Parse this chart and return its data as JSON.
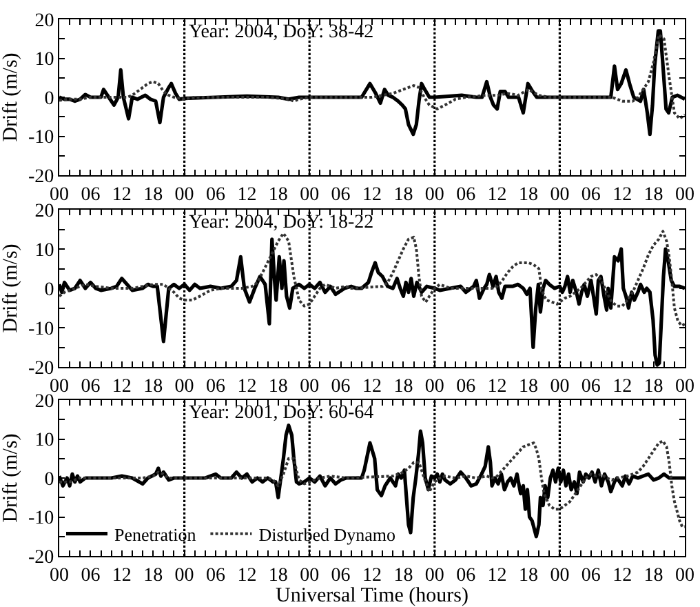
{
  "chart_data": [
    {
      "type": "line",
      "ylabel": "Drift (m/s)",
      "annotations": [
        "Year: 2004, DoY: 38-42"
      ],
      "xlim": [
        0,
        120
      ],
      "xticks": [
        {
          "value": 0,
          "label": "00"
        },
        {
          "value": 2,
          "label": null
        },
        {
          "value": 4,
          "label": null
        },
        {
          "value": 6,
          "label": "06"
        },
        {
          "value": 8,
          "label": null
        },
        {
          "value": 10,
          "label": null
        },
        {
          "value": 12,
          "label": "12"
        },
        {
          "value": 14,
          "label": null
        },
        {
          "value": 16,
          "label": null
        },
        {
          "value": 18,
          "label": "18"
        },
        {
          "value": 20,
          "label": null
        },
        {
          "value": 22,
          "label": null
        },
        {
          "value": 24,
          "label": "00"
        },
        {
          "value": 26,
          "label": null
        },
        {
          "value": 28,
          "label": null
        },
        {
          "value": 30,
          "label": "06"
        },
        {
          "value": 32,
          "label": null
        },
        {
          "value": 34,
          "label": null
        },
        {
          "value": 36,
          "label": "12"
        },
        {
          "value": 38,
          "label": null
        },
        {
          "value": 40,
          "label": null
        },
        {
          "value": 42,
          "label": "18"
        },
        {
          "value": 44,
          "label": null
        },
        {
          "value": 46,
          "label": null
        },
        {
          "value": 48,
          "label": "00"
        },
        {
          "value": 50,
          "label": null
        },
        {
          "value": 52,
          "label": null
        },
        {
          "value": 54,
          "label": "06"
        },
        {
          "value": 56,
          "label": null
        },
        {
          "value": 58,
          "label": null
        },
        {
          "value": 60,
          "label": "12"
        },
        {
          "value": 62,
          "label": null
        },
        {
          "value": 64,
          "label": null
        },
        {
          "value": 66,
          "label": "18"
        },
        {
          "value": 68,
          "label": null
        },
        {
          "value": 70,
          "label": null
        },
        {
          "value": 72,
          "label": "00"
        },
        {
          "value": 74,
          "label": null
        },
        {
          "value": 76,
          "label": null
        },
        {
          "value": 78,
          "label": "06"
        },
        {
          "value": 80,
          "label": null
        },
        {
          "value": 82,
          "label": null
        },
        {
          "value": 84,
          "label": "12"
        },
        {
          "value": 86,
          "label": null
        },
        {
          "value": 88,
          "label": null
        },
        {
          "value": 90,
          "label": "18"
        },
        {
          "value": 92,
          "label": null
        },
        {
          "value": 94,
          "label": null
        },
        {
          "value": 96,
          "label": "00"
        },
        {
          "value": 98,
          "label": null
        },
        {
          "value": 100,
          "label": null
        },
        {
          "value": 102,
          "label": "06"
        },
        {
          "value": 104,
          "label": null
        },
        {
          "value": 106,
          "label": null
        },
        {
          "value": 108,
          "label": "12"
        },
        {
          "value": 110,
          "label": null
        },
        {
          "value": 112,
          "label": null
        },
        {
          "value": 114,
          "label": "18"
        },
        {
          "value": 116,
          "label": null
        },
        {
          "value": 118,
          "label": null
        },
        {
          "value": 120,
          "label": "00"
        }
      ],
      "ylim": [
        -20,
        20
      ],
      "yticks": [
        -20,
        {
          "value": -15,
          "label": null
        },
        -10,
        {
          "value": -5,
          "label": null
        },
        0,
        {
          "value": 5,
          "label": null
        },
        10,
        {
          "value": 15,
          "label": null
        },
        20
      ],
      "ref_lines": [
        {
          "axis": "x",
          "value": 24,
          "color": "#000000",
          "line_style": "dotted"
        },
        {
          "axis": "x",
          "value": 48,
          "color": "#000000",
          "line_style": "dotted"
        },
        {
          "axis": "x",
          "value": 72,
          "color": "#000000",
          "line_style": "dotted"
        },
        {
          "axis": "x",
          "value": 96,
          "color": "#000000",
          "line_style": "dotted"
        }
      ],
      "series": [
        {
          "color": "#000000",
          "line_style": "solid",
          "x": [
            0,
            1,
            2,
            3,
            4,
            5,
            6,
            8,
            8.5,
            9.5,
            10.5,
            11.3,
            11.8,
            12.3,
            13.3,
            14,
            15,
            16.5,
            17.5,
            18.5,
            19.3,
            20,
            21,
            21.5,
            22.3,
            23,
            24,
            30,
            36,
            42,
            44,
            46,
            48,
            54,
            58,
            59.6,
            60.7,
            61.6,
            62.4,
            63.1,
            64,
            65,
            65.8,
            66.4,
            67,
            67.9,
            68.5,
            69,
            69.5,
            70.1,
            71,
            72,
            77.2,
            80,
            81.1,
            82,
            82.7,
            83.3,
            84,
            84.6,
            85.5,
            86.2,
            88.1,
            89,
            89.9,
            90.8,
            91.6,
            96,
            105.8,
            106.5,
            107.1,
            107.8,
            108.7,
            109.5,
            110.2,
            111.5,
            112.1,
            112.8,
            113.3,
            113.8,
            114.2,
            114.9,
            115.3,
            115.7,
            116.4,
            116.9,
            117.6,
            118.6,
            120
          ],
          "values": [
            0,
            -0.5,
            -0.5,
            -1,
            -0.5,
            0.7,
            0,
            0,
            2,
            0,
            -2,
            0,
            7,
            0,
            -5.5,
            0,
            -0.5,
            0.5,
            -0.5,
            -1,
            -6.5,
            0,
            2.5,
            3.5,
            1,
            -0.5,
            -0.3,
            0,
            0.3,
            0,
            -0.5,
            0,
            0,
            0,
            0,
            3.5,
            1,
            -1.5,
            2,
            0.5,
            0,
            -1,
            -2,
            -3,
            -7,
            -9.5,
            -7,
            -1,
            3.5,
            2,
            0,
            0,
            0.5,
            0,
            0,
            4,
            0,
            -2,
            -3,
            1.5,
            1.5,
            0,
            0,
            -4,
            3.5,
            1.5,
            0,
            0,
            0,
            8,
            2,
            3.5,
            7,
            3,
            0,
            -1,
            2,
            -4,
            -9.5,
            -2,
            8,
            17,
            17,
            10,
            -3,
            -4,
            0,
            0.5,
            -0.5
          ]
        },
        {
          "color": "#333333",
          "line_style": "dotted",
          "x": [
            0,
            2,
            4,
            6,
            10,
            13,
            14,
            15,
            16,
            17,
            18,
            19,
            20,
            21,
            22,
            24,
            26,
            40,
            44,
            45,
            46,
            48,
            60,
            62,
            64,
            66,
            68,
            69,
            70,
            71,
            72.5,
            74,
            76,
            78,
            82,
            84,
            86,
            88,
            90,
            92,
            94,
            96,
            106,
            108,
            110,
            111,
            112,
            113,
            114,
            115,
            116,
            117,
            118,
            119,
            120
          ],
          "values": [
            -0.8,
            -0.5,
            -0.5,
            0,
            0,
            0,
            0.5,
            1.5,
            2.5,
            3.5,
            4,
            3.5,
            1.5,
            0.5,
            0,
            -0.5,
            0,
            0,
            -0.5,
            -1,
            -0.5,
            0,
            0,
            0.5,
            1,
            2,
            3,
            2.5,
            0,
            -2,
            -3,
            -2,
            -0.5,
            0,
            0.5,
            0.5,
            1,
            0.5,
            2,
            0.5,
            0,
            0,
            0,
            -1,
            -1,
            0,
            2,
            4,
            9,
            16,
            15,
            5,
            -4,
            -5.5,
            -4.5
          ]
        }
      ]
    },
    {
      "type": "line",
      "ylabel": "Drift (m/s)",
      "annotations": [
        "Year: 2004, DoY: 18-22"
      ],
      "xlim": [
        0,
        120
      ],
      "xticks": [
        {
          "value": 0,
          "label": "00"
        },
        {
          "value": 2,
          "label": null
        },
        {
          "value": 4,
          "label": null
        },
        {
          "value": 6,
          "label": "06"
        },
        {
          "value": 8,
          "label": null
        },
        {
          "value": 10,
          "label": null
        },
        {
          "value": 12,
          "label": "12"
        },
        {
          "value": 14,
          "label": null
        },
        {
          "value": 16,
          "label": null
        },
        {
          "value": 18,
          "label": "18"
        },
        {
          "value": 20,
          "label": null
        },
        {
          "value": 22,
          "label": null
        },
        {
          "value": 24,
          "label": "00"
        },
        {
          "value": 26,
          "label": null
        },
        {
          "value": 28,
          "label": null
        },
        {
          "value": 30,
          "label": "06"
        },
        {
          "value": 32,
          "label": null
        },
        {
          "value": 34,
          "label": null
        },
        {
          "value": 36,
          "label": "12"
        },
        {
          "value": 38,
          "label": null
        },
        {
          "value": 40,
          "label": null
        },
        {
          "value": 42,
          "label": "18"
        },
        {
          "value": 44,
          "label": null
        },
        {
          "value": 46,
          "label": null
        },
        {
          "value": 48,
          "label": "00"
        },
        {
          "value": 50,
          "label": null
        },
        {
          "value": 52,
          "label": null
        },
        {
          "value": 54,
          "label": "06"
        },
        {
          "value": 56,
          "label": null
        },
        {
          "value": 58,
          "label": null
        },
        {
          "value": 60,
          "label": "12"
        },
        {
          "value": 62,
          "label": null
        },
        {
          "value": 64,
          "label": null
        },
        {
          "value": 66,
          "label": "18"
        },
        {
          "value": 68,
          "label": null
        },
        {
          "value": 70,
          "label": null
        },
        {
          "value": 72,
          "label": "00"
        },
        {
          "value": 74,
          "label": null
        },
        {
          "value": 76,
          "label": null
        },
        {
          "value": 78,
          "label": "06"
        },
        {
          "value": 80,
          "label": null
        },
        {
          "value": 82,
          "label": null
        },
        {
          "value": 84,
          "label": "12"
        },
        {
          "value": 86,
          "label": null
        },
        {
          "value": 88,
          "label": null
        },
        {
          "value": 90,
          "label": "18"
        },
        {
          "value": 92,
          "label": null
        },
        {
          "value": 94,
          "label": null
        },
        {
          "value": 96,
          "label": "00"
        },
        {
          "value": 98,
          "label": null
        },
        {
          "value": 100,
          "label": null
        },
        {
          "value": 102,
          "label": "06"
        },
        {
          "value": 104,
          "label": null
        },
        {
          "value": 106,
          "label": null
        },
        {
          "value": 108,
          "label": "12"
        },
        {
          "value": 110,
          "label": null
        },
        {
          "value": 112,
          "label": null
        },
        {
          "value": 114,
          "label": "18"
        },
        {
          "value": 116,
          "label": null
        },
        {
          "value": 118,
          "label": null
        },
        {
          "value": 120,
          "label": "00"
        }
      ],
      "ylim": [
        -20,
        20
      ],
      "yticks": [
        -20,
        {
          "value": -15,
          "label": null
        },
        -10,
        {
          "value": -5,
          "label": null
        },
        0,
        {
          "value": 5,
          "label": null
        },
        10,
        {
          "value": 15,
          "label": null
        },
        20
      ],
      "ref_lines": [
        {
          "axis": "x",
          "value": 24,
          "color": "#000000",
          "line_style": "dotted"
        },
        {
          "axis": "x",
          "value": 48,
          "color": "#000000",
          "line_style": "dotted"
        },
        {
          "axis": "x",
          "value": 72,
          "color": "#000000",
          "line_style": "dotted"
        },
        {
          "axis": "x",
          "value": 96,
          "color": "#000000",
          "line_style": "dotted"
        }
      ],
      "series": [
        {
          "color": "#000000",
          "line_style": "solid",
          "x": [
            0,
            0.5,
            1,
            2,
            3,
            4,
            5,
            6,
            7,
            8,
            10,
            11,
            12,
            13,
            14,
            16,
            17,
            18,
            18.8,
            20,
            21,
            22,
            23,
            24,
            25,
            26,
            27,
            29,
            31,
            33,
            34,
            34.8,
            35.5,
            36.5,
            37.5,
            38.5,
            39.5,
            40.3,
            40.8,
            41.3,
            41.6,
            42.2,
            42.7,
            43.1,
            43.6,
            44.2,
            44.8,
            46,
            47,
            48,
            49,
            50,
            51,
            52,
            53,
            54.7,
            56,
            57,
            58,
            59.3,
            59.9,
            60.6,
            61.2,
            62,
            63,
            64,
            64.8,
            65.4,
            66,
            66.5,
            67,
            67.5,
            68,
            68.6,
            69.5,
            70.5,
            72,
            73,
            75,
            77,
            78,
            79.5,
            80,
            80.6,
            81.5,
            82,
            82.5,
            83.2,
            83.8,
            84.3,
            84.9,
            85.5,
            87,
            88,
            89,
            89.7,
            90.3,
            90.9,
            91.4,
            91.9,
            92.3,
            92.8,
            93.3,
            94,
            95,
            96,
            96.5,
            97,
            97.5,
            98,
            98.5,
            99.2,
            99.7,
            100.2,
            100.7,
            101.3,
            102,
            102.6,
            103,
            103.4,
            103.9,
            104.5,
            105,
            105.3,
            105.8,
            106.5,
            107.2,
            107.8,
            108.2,
            108.7,
            109.2,
            109.8,
            110.3,
            111,
            111.5,
            112.2,
            112.7,
            113.3,
            113.9,
            114.3,
            114.7,
            115.1,
            115.5,
            115.9,
            116.3,
            116.8,
            117.4,
            118,
            119,
            120
          ],
          "values": [
            1,
            -1,
            1.5,
            -0.5,
            0,
            2,
            0,
            1.5,
            0,
            -0.5,
            0,
            0.5,
            2.5,
            1,
            -0.5,
            0,
            1,
            0.5,
            0.5,
            -13.5,
            0,
            1,
            0,
            1,
            -0.5,
            1,
            0,
            0.5,
            0,
            0.5,
            2,
            8,
            0,
            -3.5,
            0,
            3,
            1,
            -9,
            12.5,
            2,
            -3,
            8,
            0,
            7,
            -2,
            -5,
            0,
            1,
            0,
            1,
            0,
            1.5,
            -1,
            0.5,
            -1.5,
            0,
            0.5,
            0,
            0,
            1.5,
            4,
            6.5,
            4,
            3,
            0.5,
            0,
            2.5,
            0,
            -2,
            1.5,
            -1,
            2.5,
            -2,
            1.5,
            -1,
            0.5,
            0,
            -0.5,
            0,
            0.5,
            -1,
            0.5,
            2,
            -2.5,
            0,
            1,
            3.5,
            0.5,
            3,
            -1,
            -2.5,
            0.5,
            0.5,
            1,
            0,
            -1.5,
            0,
            -15,
            -5,
            1,
            -6,
            0,
            2,
            1,
            0,
            0.5,
            -1,
            0.5,
            3,
            -1,
            2,
            -1,
            -4,
            -1,
            1,
            -2,
            2,
            -3,
            -6.5,
            2,
            3,
            -2,
            -5.5,
            0,
            -5,
            8,
            7,
            10,
            0,
            -2,
            -5,
            -1,
            -3,
            -1,
            1,
            -1,
            0,
            -1,
            -8,
            -17,
            -19.5,
            -19,
            -8,
            3,
            10,
            7,
            2,
            0.5,
            0.5,
            0
          ]
        },
        {
          "color": "#333333",
          "line_style": "dotted",
          "x": [
            0,
            1,
            3,
            5,
            7,
            10,
            14,
            16,
            18,
            20,
            21,
            22,
            23,
            24,
            25.5,
            27,
            29,
            31,
            35,
            37,
            38,
            39,
            40.5,
            42,
            43,
            44,
            45,
            46,
            47,
            48,
            49,
            50,
            51,
            52,
            53,
            55,
            56,
            62,
            63,
            64,
            65,
            66,
            67,
            68,
            68.5,
            69,
            69.5,
            70.3,
            71,
            72,
            73,
            74,
            75,
            83,
            84,
            85,
            86,
            87,
            88,
            90,
            91,
            92,
            92.5,
            93,
            93.5,
            94.5,
            95.5,
            96,
            97,
            98,
            99,
            100,
            101,
            102,
            103,
            104,
            105,
            106,
            107,
            108,
            109,
            110,
            111,
            112,
            113,
            114,
            115,
            115.8,
            116.5,
            117,
            117.5,
            118,
            118.7,
            119.5,
            120
          ],
          "values": [
            -2,
            -1,
            0,
            1,
            0.5,
            0,
            0,
            0.5,
            1,
            1,
            0,
            -1,
            -2.5,
            -3,
            -3,
            -2,
            -0.5,
            0,
            0,
            0.5,
            1.5,
            4,
            8,
            12,
            14,
            12,
            3,
            -3,
            -4.5,
            -4,
            -2,
            0,
            1,
            0.5,
            0,
            0.5,
            0,
            0.5,
            1.5,
            4,
            7,
            10,
            12.5,
            13,
            10,
            3,
            -2,
            -3.5,
            -2,
            0,
            1,
            0.5,
            0,
            0,
            0.5,
            2,
            4,
            5.5,
            6.5,
            6.5,
            6,
            5,
            0,
            -2,
            -3,
            -3.5,
            -4,
            -3.5,
            -2.5,
            -2,
            -1,
            0,
            1.5,
            3,
            3.5,
            2,
            -1,
            -3.5,
            -4.5,
            -4.5,
            -3,
            -1,
            2,
            5,
            8.5,
            11,
            12.5,
            14.5,
            12,
            8,
            2,
            -5,
            -8.5,
            -9.5,
            -9
          ]
        }
      ]
    },
    {
      "type": "line",
      "ylabel": "Drift (m/s)",
      "xlabel": "Universal Time (hours)",
      "annotations": [
        "Year: 2001, DoY: 60-64"
      ],
      "legend": "bottom left",
      "xlim": [
        0,
        120
      ],
      "xticks": [
        {
          "value": 0,
          "label": "00"
        },
        {
          "value": 2,
          "label": null
        },
        {
          "value": 4,
          "label": null
        },
        {
          "value": 6,
          "label": "06"
        },
        {
          "value": 8,
          "label": null
        },
        {
          "value": 10,
          "label": null
        },
        {
          "value": 12,
          "label": "12"
        },
        {
          "value": 14,
          "label": null
        },
        {
          "value": 16,
          "label": null
        },
        {
          "value": 18,
          "label": "18"
        },
        {
          "value": 20,
          "label": null
        },
        {
          "value": 22,
          "label": null
        },
        {
          "value": 24,
          "label": "00"
        },
        {
          "value": 26,
          "label": null
        },
        {
          "value": 28,
          "label": null
        },
        {
          "value": 30,
          "label": "06"
        },
        {
          "value": 32,
          "label": null
        },
        {
          "value": 34,
          "label": null
        },
        {
          "value": 36,
          "label": "12"
        },
        {
          "value": 38,
          "label": null
        },
        {
          "value": 40,
          "label": null
        },
        {
          "value": 42,
          "label": "18"
        },
        {
          "value": 44,
          "label": null
        },
        {
          "value": 46,
          "label": null
        },
        {
          "value": 48,
          "label": "00"
        },
        {
          "value": 50,
          "label": null
        },
        {
          "value": 52,
          "label": null
        },
        {
          "value": 54,
          "label": "06"
        },
        {
          "value": 56,
          "label": null
        },
        {
          "value": 58,
          "label": null
        },
        {
          "value": 60,
          "label": "12"
        },
        {
          "value": 62,
          "label": null
        },
        {
          "value": 64,
          "label": null
        },
        {
          "value": 66,
          "label": "18"
        },
        {
          "value": 68,
          "label": null
        },
        {
          "value": 70,
          "label": null
        },
        {
          "value": 72,
          "label": "00"
        },
        {
          "value": 74,
          "label": null
        },
        {
          "value": 76,
          "label": null
        },
        {
          "value": 78,
          "label": "06"
        },
        {
          "value": 80,
          "label": null
        },
        {
          "value": 82,
          "label": null
        },
        {
          "value": 84,
          "label": "12"
        },
        {
          "value": 86,
          "label": null
        },
        {
          "value": 88,
          "label": null
        },
        {
          "value": 90,
          "label": "18"
        },
        {
          "value": 92,
          "label": null
        },
        {
          "value": 94,
          "label": null
        },
        {
          "value": 96,
          "label": "00"
        },
        {
          "value": 98,
          "label": null
        },
        {
          "value": 100,
          "label": null
        },
        {
          "value": 102,
          "label": "06"
        },
        {
          "value": 104,
          "label": null
        },
        {
          "value": 106,
          "label": null
        },
        {
          "value": 108,
          "label": "12"
        },
        {
          "value": 110,
          "label": null
        },
        {
          "value": 112,
          "label": null
        },
        {
          "value": 114,
          "label": "18"
        },
        {
          "value": 116,
          "label": null
        },
        {
          "value": 118,
          "label": null
        },
        {
          "value": 120,
          "label": "00"
        }
      ],
      "ylim": [
        -20,
        20
      ],
      "yticks": [
        -20,
        {
          "value": -15,
          "label": null
        },
        -10,
        {
          "value": -5,
          "label": null
        },
        0,
        {
          "value": 5,
          "label": null
        },
        10,
        {
          "value": 15,
          "label": null
        },
        20
      ],
      "ref_lines": [
        {
          "axis": "x",
          "value": 24,
          "color": "#000000",
          "line_style": "dotted"
        },
        {
          "axis": "x",
          "value": 48,
          "color": "#000000",
          "line_style": "dotted"
        },
        {
          "axis": "x",
          "value": 72,
          "color": "#000000",
          "line_style": "dotted"
        },
        {
          "axis": "x",
          "value": 96,
          "color": "#000000",
          "line_style": "dotted"
        }
      ],
      "series": [
        {
          "name": "Penetration",
          "color": "#000000",
          "line_style": "solid",
          "x": [
            0,
            0.7,
            1.5,
            2,
            2.5,
            3,
            3.5,
            4,
            5,
            10,
            12,
            14,
            16,
            17,
            18.5,
            19,
            19.5,
            20,
            21,
            22,
            28,
            30,
            31,
            33,
            34,
            35,
            36,
            37,
            38,
            39,
            40,
            41,
            41.5,
            42,
            42.5,
            43,
            43.5,
            44,
            44.6,
            45,
            45.5,
            46,
            47,
            48,
            49,
            50,
            51,
            52,
            53,
            54,
            55,
            58,
            58.5,
            59.6,
            60.5,
            61,
            61.8,
            62.5,
            63.5,
            64.5,
            65,
            65.6,
            66.2,
            67,
            67.4,
            67.9,
            68.4,
            68.9,
            69.3,
            69.7,
            70.2,
            70.8,
            71.4,
            72,
            72.5,
            73,
            73.5,
            74,
            75,
            76,
            77,
            78,
            79,
            80,
            81,
            81.7,
            82.3,
            82.7,
            83,
            83.6,
            84.2,
            84.8,
            85.4,
            86,
            86.6,
            87.2,
            87.8,
            88.5,
            89,
            89.4,
            89.8,
            90.2,
            90.7,
            91.5,
            92,
            92.3,
            92.8,
            93.2,
            93.7,
            94.2,
            94.7,
            95.2,
            95.7,
            96.2,
            96.7,
            97.2,
            97.7,
            98.2,
            98.8,
            99.3,
            99.8,
            100.5,
            101,
            101.6,
            102.2,
            102.8,
            103.4,
            104,
            104.6,
            105.3,
            105.8,
            106.5,
            107,
            108,
            108.6,
            109.3,
            110,
            111,
            112,
            113,
            114,
            115,
            116,
            117,
            120
          ],
          "values": [
            0.5,
            -2,
            0,
            -2,
            1,
            -1,
            0.5,
            -1,
            0,
            0,
            0.5,
            0,
            -1.5,
            0,
            1,
            2.5,
            0.5,
            1.5,
            -0.5,
            0,
            0,
            1,
            0,
            0,
            1.5,
            0,
            1,
            -1,
            0,
            -1,
            0,
            -1,
            -1,
            -5,
            0,
            5,
            11,
            13.5,
            11,
            5,
            -1,
            -1.5,
            -1,
            0,
            -1,
            0.5,
            -2,
            0,
            -1.5,
            -0.5,
            0,
            0,
            2,
            9,
            5,
            -3,
            -4.5,
            -2,
            0,
            -2,
            1,
            0,
            2,
            -12,
            -14,
            -5,
            0,
            6,
            12,
            9,
            0,
            -3,
            0.5,
            0,
            1,
            -1,
            1,
            -0.5,
            -1.5,
            -0.5,
            1.5,
            0,
            -2,
            -1.5,
            1,
            3,
            8,
            4,
            -2,
            0,
            -1.5,
            1,
            -3,
            -1,
            0,
            -2,
            1,
            -4,
            -2,
            -8,
            -3,
            -10,
            -11,
            -15,
            -12,
            -5,
            -7,
            -2,
            -5,
            0,
            2,
            -1,
            2.5,
            -1,
            2,
            -2,
            1,
            -3,
            -1,
            -4,
            1.5,
            -1,
            1,
            0,
            1.5,
            -1,
            2,
            -2,
            1,
            -1,
            -3.5,
            -1,
            0,
            -2,
            0.5,
            -1.5,
            0.5,
            0,
            0.5,
            1,
            -0.5,
            0,
            1,
            0,
            0
          ]
        },
        {
          "name": "Disturbed Dynamo",
          "color": "#333333",
          "line_style": "dotted",
          "x": [
            0,
            2,
            4,
            16,
            18,
            19,
            20,
            21,
            40,
            41,
            42,
            43,
            44,
            45,
            45.5,
            46,
            47,
            48,
            50,
            52,
            55,
            64,
            66,
            67,
            68,
            69,
            70,
            71,
            72,
            73,
            74,
            76,
            78,
            80,
            82,
            83,
            84,
            85,
            86,
            87,
            88,
            89,
            90,
            91,
            91.5,
            92,
            92.5,
            93,
            94,
            95,
            96,
            97,
            98,
            99,
            100,
            101,
            102,
            103,
            104,
            105,
            106,
            107,
            109,
            110,
            111,
            112,
            113,
            114,
            115,
            115.8,
            116.5,
            117,
            117.5,
            118,
            119,
            119.5,
            120
          ],
          "values": [
            -1,
            -1,
            0,
            0,
            0.5,
            1.5,
            1,
            0,
            0,
            -0.5,
            -2,
            1,
            5,
            5,
            2,
            -0.5,
            -1.5,
            -1,
            0,
            0.5,
            0,
            0.5,
            1.5,
            2.5,
            4,
            4,
            0,
            -3.5,
            -1,
            0,
            0.5,
            0,
            0.5,
            0,
            0.5,
            0,
            0.5,
            2,
            3.5,
            5,
            6.5,
            8,
            8.5,
            9,
            7.5,
            5,
            0,
            -4,
            -7,
            -8,
            -8,
            -7,
            -6,
            -4,
            -2,
            0,
            1,
            0.5,
            1,
            0,
            -0.5,
            0,
            0.5,
            1,
            1.5,
            3,
            5,
            7,
            9,
            9.5,
            8,
            4,
            -2,
            -6,
            -11,
            -12.5,
            -12.5
          ]
        }
      ]
    }
  ]
}
